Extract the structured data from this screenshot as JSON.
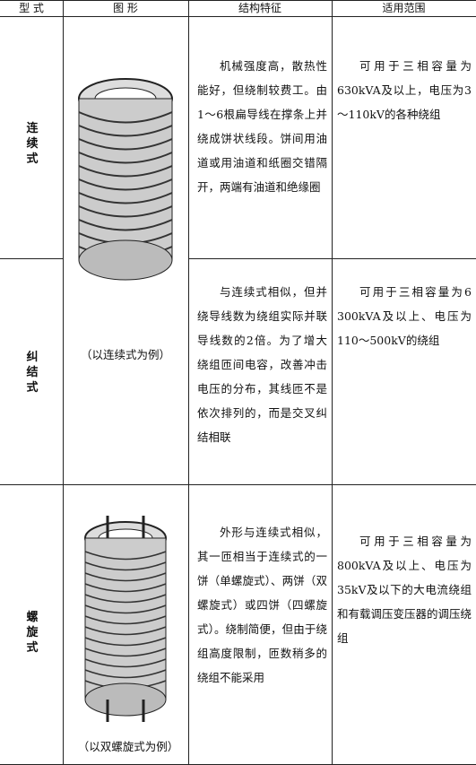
{
  "table": {
    "header": [
      "型  式",
      "图    形",
      "结构特征",
      "适用范围"
    ],
    "rows": [
      {
        "type": "连续式",
        "structure": "机械强度高，散热性能好，但绕制较费工。由1～6根扁导线在撑条上并绕成饼状线段。饼间用油道或用油道和纸圈交错隔开，两端有油道和绝缘圈",
        "range": "可用于三相容量为630kVA及以上，电压为3～110kV的各种绕组"
      },
      {
        "type": "纠结式",
        "structure": "与连续式相似，但并绕导线数为绕组实际并联导线数的2倍。为了增大绕组匝间电容，改善冲击电压的分布，其线匝不是依次排列的，而是交叉纠结相联",
        "range": "可用于三相容量为6 300kVA及以上、电压为110～500kV的绕组"
      },
      {
        "type": "螺旋式",
        "structure": "外形与连续式相似，其一匝相当于连续式的一饼（单螺旋式）、两饼（双螺旋式）或四饼（四螺旋式）。绕制简便，但由于绕组高度限制，匝数稍多的绕组不能采用",
        "range": "可用于三相容量为800kVA及以上、电压为35kV及以下的大电流绕组和有载调压变压器的调压绕组"
      }
    ],
    "captions": [
      "（以连续式为例）",
      "（以双螺旋式为例）"
    ]
  }
}
